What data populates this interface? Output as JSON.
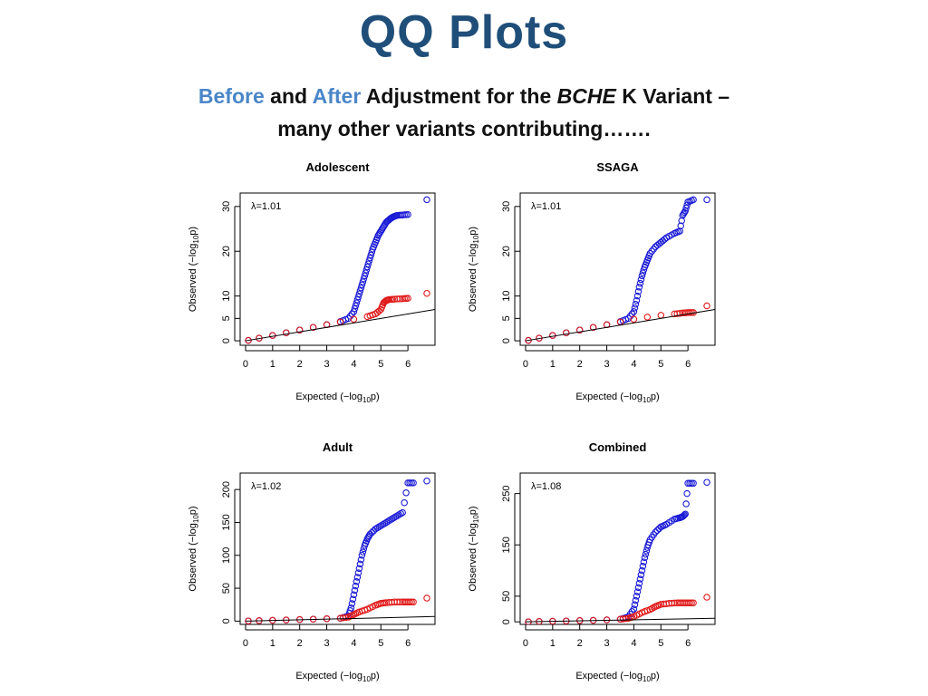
{
  "title": "QQ Plots",
  "subtitle": {
    "before": "Before",
    "and": " and ",
    "after": "After",
    "rest1": " Adjustment for the ",
    "gene": "BCHE",
    "rest2": " K Variant –",
    "line2": "many other variants contributing……."
  },
  "colors": {
    "title": "#1f4e79",
    "accent": "#4a86c8",
    "before": "#1a1ad6",
    "after": "#e01a1a",
    "reference": "#000000"
  },
  "chart_data": [
    {
      "type": "scatter",
      "title": "Adolescent",
      "lambda": "λ=1.01",
      "xlabel": "Expected (−log10p)",
      "ylabel": "Observed (−log10p)",
      "xlim": [
        -0.2,
        7
      ],
      "ylim": [
        -1,
        33
      ],
      "xticks": [
        0,
        1,
        2,
        3,
        4,
        5,
        6
      ],
      "yticks": [
        0,
        5,
        10,
        20,
        30
      ],
      "reference_slope": 1.0,
      "series": [
        {
          "name": "Before adjustment",
          "color": "#1a1ad6",
          "x": [
            0.1,
            0.5,
            1,
            1.5,
            2,
            2.5,
            3,
            3.5,
            3.8,
            4.0,
            4.1,
            4.2,
            4.3,
            4.4,
            4.5,
            4.6,
            4.7,
            4.8,
            4.9,
            5.0,
            5.1,
            5.2,
            5.3,
            5.4,
            5.5,
            5.6,
            5.8,
            6.0,
            6.7
          ],
          "y": [
            0.1,
            0.6,
            1.2,
            1.8,
            2.4,
            3.0,
            3.6,
            4.3,
            5.0,
            6.5,
            8.5,
            10.5,
            12.5,
            14.5,
            16.5,
            18.5,
            20.5,
            22.0,
            23.5,
            24.5,
            25.5,
            26.5,
            27.0,
            27.5,
            27.8,
            28.0,
            28.1,
            28.2,
            31.5
          ]
        },
        {
          "name": "After adjustment",
          "color": "#e01a1a",
          "x": [
            0.1,
            0.5,
            1,
            1.5,
            2,
            2.5,
            3,
            3.5,
            4.0,
            4.5,
            4.8,
            5.0,
            5.1,
            5.2,
            5.3,
            5.5,
            5.8,
            6.0,
            6.7
          ],
          "y": [
            0.1,
            0.6,
            1.2,
            1.8,
            2.4,
            3.0,
            3.6,
            4.2,
            4.8,
            5.4,
            6.0,
            7.0,
            8.5,
            9.0,
            9.2,
            9.3,
            9.4,
            9.5,
            10.6
          ]
        }
      ]
    },
    {
      "type": "scatter",
      "title": "SSAGA",
      "lambda": "λ=1.01",
      "xlabel": "Expected (−log10p)",
      "ylabel": "Observed (−log10p)",
      "xlim": [
        -0.2,
        7
      ],
      "ylim": [
        -1,
        33
      ],
      "xticks": [
        0,
        1,
        2,
        3,
        4,
        5,
        6
      ],
      "yticks": [
        0,
        5,
        10,
        20,
        30
      ],
      "reference_slope": 1.0,
      "series": [
        {
          "name": "Before adjustment",
          "color": "#1a1ad6",
          "x": [
            0.1,
            0.5,
            1,
            1.5,
            2,
            2.5,
            3,
            3.5,
            3.8,
            4.0,
            4.1,
            4.2,
            4.3,
            4.4,
            4.5,
            4.6,
            4.8,
            5.0,
            5.2,
            5.5,
            5.7,
            5.8,
            5.9,
            6.0,
            6.2,
            6.7
          ],
          "y": [
            0.1,
            0.6,
            1.2,
            1.8,
            2.4,
            3.0,
            3.6,
            4.3,
            5.0,
            6.5,
            9.0,
            12.0,
            14.5,
            16.5,
            18.0,
            19.5,
            21.0,
            22.0,
            23.0,
            24.0,
            24.5,
            28.0,
            29.0,
            31.0,
            31.5,
            31.5
          ]
        },
        {
          "name": "After adjustment",
          "color": "#e01a1a",
          "x": [
            0.1,
            0.5,
            1,
            1.5,
            2,
            2.5,
            3,
            3.5,
            4.0,
            4.5,
            5.0,
            5.5,
            5.8,
            6.0,
            6.2,
            6.7
          ],
          "y": [
            0.1,
            0.6,
            1.2,
            1.8,
            2.4,
            3.0,
            3.6,
            4.2,
            4.8,
            5.3,
            5.7,
            6.0,
            6.2,
            6.3,
            6.3,
            7.8
          ]
        }
      ]
    },
    {
      "type": "scatter",
      "title": "Adult",
      "lambda": "λ=1.02",
      "xlabel": "Expected (−log10p)",
      "ylabel": "Observed (−log10p)",
      "xlim": [
        -0.2,
        7
      ],
      "ylim": [
        -5,
        225
      ],
      "xticks": [
        0,
        1,
        2,
        3,
        4,
        5,
        6
      ],
      "yticks": [
        0,
        50,
        100,
        150,
        200
      ],
      "reference_slope": 1.0,
      "series": [
        {
          "name": "Before adjustment",
          "color": "#1a1ad6",
          "x": [
            0.1,
            0.5,
            1,
            1.5,
            2,
            2.5,
            3,
            3.5,
            3.8,
            3.9,
            4.0,
            4.1,
            4.2,
            4.3,
            4.4,
            4.5,
            4.6,
            4.8,
            5.0,
            5.2,
            5.4,
            5.6,
            5.8,
            6.0,
            6.2,
            6.7
          ],
          "y": [
            0.2,
            0.6,
            1.2,
            1.8,
            2.4,
            3.0,
            3.6,
            4.3,
            8,
            20,
            40,
            60,
            80,
            100,
            115,
            125,
            132,
            140,
            145,
            150,
            155,
            160,
            165,
            210,
            210,
            213
          ]
        },
        {
          "name": "After adjustment",
          "color": "#e01a1a",
          "x": [
            0.1,
            0.5,
            1,
            1.5,
            2,
            2.5,
            3,
            3.5,
            3.8,
            4.0,
            4.2,
            4.5,
            4.8,
            5.0,
            5.2,
            5.5,
            5.8,
            6.0,
            6.2,
            6.7
          ],
          "y": [
            0.2,
            0.6,
            1.2,
            1.8,
            2.4,
            3.0,
            3.6,
            4.5,
            6,
            10,
            14,
            18,
            24,
            27,
            28,
            29,
            29,
            29,
            29,
            35
          ]
        }
      ]
    },
    {
      "type": "scatter",
      "title": "Combined",
      "lambda": "λ=1.08",
      "xlabel": "Expected (−log10p)",
      "ylabel": "Observed (−log10p)",
      "xlim": [
        -0.2,
        7
      ],
      "ylim": [
        -5,
        290
      ],
      "xticks": [
        0,
        1,
        2,
        3,
        4,
        5,
        6
      ],
      "yticks": [
        0,
        50,
        150,
        250
      ],
      "reference_slope": 1.0,
      "series": [
        {
          "name": "Before adjustment",
          "color": "#1a1ad6",
          "x": [
            0.1,
            0.5,
            1,
            1.5,
            2,
            2.5,
            3,
            3.5,
            3.8,
            4.0,
            4.1,
            4.2,
            4.3,
            4.4,
            4.5,
            4.6,
            4.8,
            5.0,
            5.2,
            5.5,
            5.7,
            5.8,
            5.9,
            6.0,
            6.2,
            6.7
          ],
          "y": [
            0.2,
            0.6,
            1.2,
            1.8,
            2.4,
            3.0,
            3.8,
            5,
            10,
            25,
            50,
            75,
            100,
            125,
            145,
            160,
            175,
            185,
            190,
            200,
            203,
            205,
            210,
            270,
            270,
            272
          ]
        },
        {
          "name": "After adjustment",
          "color": "#e01a1a",
          "x": [
            0.1,
            0.5,
            1,
            1.5,
            2,
            2.5,
            3,
            3.5,
            3.8,
            4.0,
            4.3,
            4.6,
            4.8,
            5.0,
            5.3,
            5.6,
            5.8,
            6.0,
            6.2,
            6.7
          ],
          "y": [
            0.2,
            0.6,
            1.2,
            1.8,
            2.4,
            3.0,
            3.8,
            5,
            7,
            10,
            18,
            24,
            30,
            34,
            36,
            37,
            37,
            37,
            37,
            48
          ]
        }
      ]
    }
  ]
}
